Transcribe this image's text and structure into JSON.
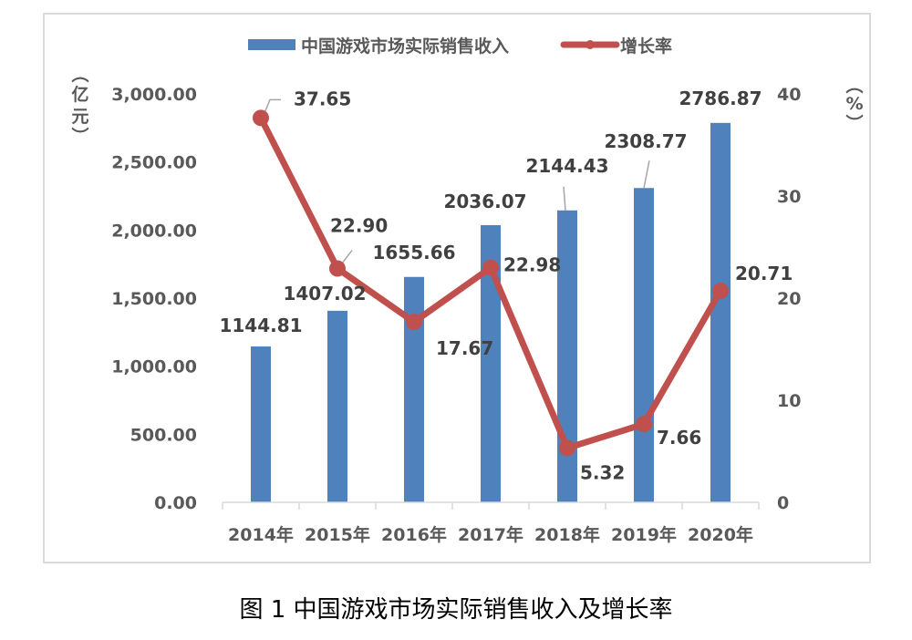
{
  "chart_data": {
    "type": "bar+line",
    "title": "",
    "caption": "图 1  中国游戏市场实际销售收入及增长率",
    "categories": [
      "2014年",
      "2015年",
      "2016年",
      "2017年",
      "2018年",
      "2019年",
      "2020年"
    ],
    "series": [
      {
        "name": "中国游戏市场实际销售收入",
        "type": "bar",
        "axis": "left",
        "color": "#4f81bd",
        "values": [
          1144.81,
          1407.02,
          1655.66,
          2036.07,
          2144.43,
          2308.77,
          2786.87
        ],
        "labels": [
          "1144.81",
          "1407.02",
          "1655.66",
          "2036.07",
          "2144.43",
          "2308.77",
          "2786.87"
        ]
      },
      {
        "name": "增长率",
        "type": "line",
        "axis": "right",
        "color": "#c0504d",
        "values": [
          37.65,
          22.9,
          17.67,
          22.98,
          5.32,
          7.66,
          20.71
        ],
        "labels": [
          "37.65",
          "22.90",
          "17.67",
          "22.98",
          "5.32",
          "7.66",
          "20.71"
        ]
      }
    ],
    "left_axis": {
      "label": "（亿元）",
      "ylim": [
        0,
        3000
      ],
      "ticks": [
        "0.00",
        "500.00",
        "1,000.00",
        "1,500.00",
        "2,000.00",
        "2,500.00",
        "3,000.00"
      ]
    },
    "right_axis": {
      "label": "（%）",
      "ylim": [
        0,
        40
      ],
      "ticks": [
        "0",
        "10",
        "20",
        "30",
        "40"
      ]
    },
    "legend": {
      "position": "top",
      "entries": [
        "中国游戏市场实际销售收入",
        "增长率"
      ]
    },
    "grid": false
  },
  "labels": {
    "left_unit_chars": [
      "︵",
      "亿",
      "元",
      "︶"
    ],
    "right_unit_chars": [
      "︵",
      "%",
      "︶"
    ],
    "legend_bar": "中国游戏市场实际销售收入",
    "legend_line": "增长率",
    "caption": "图 1  中国游戏市场实际销售收入及增长率"
  }
}
